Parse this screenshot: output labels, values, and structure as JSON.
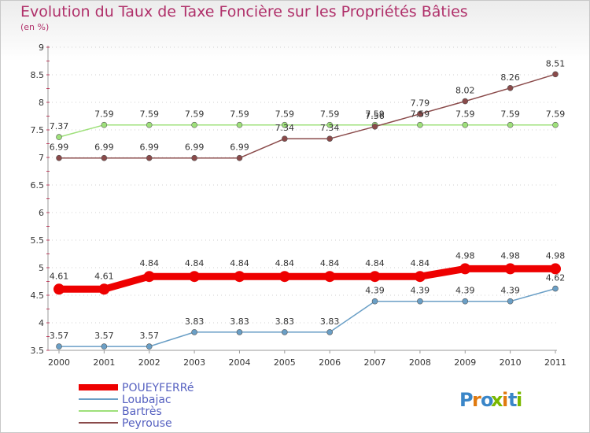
{
  "title": "Evolution du Taux de Taxe Foncière sur les Propriétés Bâties",
  "subtitle": "(en %)",
  "brand": {
    "text": "Proxiti",
    "letters": [
      "P",
      "r",
      "o",
      "x",
      "i",
      "t",
      "i"
    ],
    "colors": [
      "#3a86c8",
      "#e07a10",
      "#3a86c8",
      "#7ab800",
      "#e07a10",
      "#3a86c8",
      "#7ab800"
    ]
  },
  "chart_data": {
    "type": "line",
    "title": "Evolution du Taux de Taxe Foncière sur les Propriétés Bâties",
    "ylabel": "(en %)",
    "xlabel": "",
    "ylim": [
      3.5,
      9
    ],
    "yticks": [
      "3.5",
      "4",
      "4.5",
      "5",
      "5.5",
      "6",
      "6.5",
      "7",
      "7.5",
      "8",
      "8.5",
      "9"
    ],
    "categories": [
      "2000",
      "2001",
      "2002",
      "2003",
      "2004",
      "2005",
      "2006",
      "2007",
      "2008",
      "2009",
      "2010",
      "2011"
    ],
    "series": [
      {
        "name": "POUEYFERRé",
        "color": "#ee0000",
        "width": 9,
        "marker": 7,
        "values": [
          4.61,
          4.61,
          4.84,
          4.84,
          4.84,
          4.84,
          4.84,
          4.84,
          4.84,
          4.98,
          4.98,
          4.98
        ],
        "labels": [
          "4.61",
          "4.61",
          "4.84",
          "4.84",
          "4.84",
          "4.84",
          "4.84",
          "4.84",
          "4.84",
          "4.98",
          "4.98",
          "4.98"
        ]
      },
      {
        "name": "Loubajac",
        "color": "#6a9fc6",
        "width": 1.5,
        "marker": 3.5,
        "values": [
          3.57,
          3.57,
          3.57,
          3.83,
          3.83,
          3.83,
          3.83,
          4.39,
          4.39,
          4.39,
          4.39,
          4.62
        ],
        "labels": [
          "3.57",
          "3.57",
          "3.57",
          "3.83",
          "3.83",
          "3.83",
          "3.83",
          "4.39",
          "4.39",
          "4.39",
          "4.39",
          "4.62"
        ]
      },
      {
        "name": "Bartrès",
        "color": "#9ee07a",
        "width": 1.5,
        "marker": 3.5,
        "values": [
          7.37,
          7.59,
          7.59,
          7.59,
          7.59,
          7.59,
          7.59,
          7.59,
          7.59,
          7.59,
          7.59,
          7.59
        ],
        "labels": [
          "7.37",
          "7.59",
          "7.59",
          "7.59",
          "7.59",
          "7.59",
          "7.59",
          "7.59",
          "7.59",
          "7.59",
          "7.59",
          "7.59"
        ]
      },
      {
        "name": "Peyrouse",
        "color": "#8a4a4a",
        "width": 1.5,
        "marker": 3.5,
        "values": [
          6.99,
          6.99,
          6.99,
          6.99,
          6.99,
          7.34,
          7.34,
          7.56,
          7.79,
          8.02,
          8.26,
          8.51
        ],
        "labels": [
          "6.99",
          "6.99",
          "6.99",
          "6.99",
          "6.99",
          "7.34",
          "7.34",
          "7.56",
          "7.79",
          "8.02",
          "8.26",
          "8.51"
        ]
      }
    ]
  }
}
